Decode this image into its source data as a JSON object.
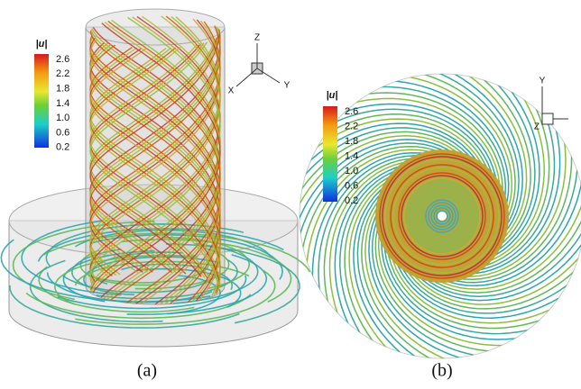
{
  "panel_a": {
    "colorbar": {
      "title": "|u|",
      "ticks": [
        "2.6",
        "2.2",
        "1.8",
        "1.4",
        "1.0",
        "0.6",
        "0.2"
      ]
    },
    "axes": {
      "z": "Z",
      "x": "X",
      "y": "Y"
    },
    "caption": "(a)"
  },
  "panel_b": {
    "colorbar": {
      "title": "|u|",
      "ticks": [
        "2.6",
        "2.2",
        "1.8",
        "1.4",
        "1.0",
        "0.6",
        "0.2"
      ]
    },
    "axes": {
      "y": "Y",
      "z": "Z"
    },
    "caption": "(b)"
  }
}
